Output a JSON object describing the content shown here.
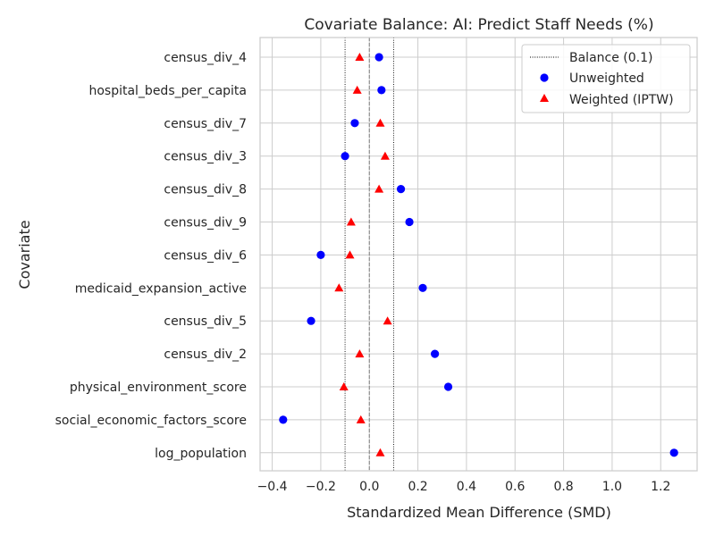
{
  "chart_data": {
    "type": "scatter",
    "title": "Covariate Balance: AI: Predict Staff Needs (%)",
    "xlabel": "Standardized Mean Difference (SMD)",
    "ylabel": "Covariate",
    "xlim": [
      -0.45,
      1.35
    ],
    "xticks": [
      -0.4,
      -0.2,
      0.0,
      0.2,
      0.4,
      0.6,
      0.8,
      1.0,
      1.2
    ],
    "xtick_labels": [
      "−0.4",
      "−0.2",
      "0.0",
      "0.2",
      "0.4",
      "0.6",
      "0.8",
      "1.0",
      "1.2"
    ],
    "grid": true,
    "legend_position": "top-right",
    "categories": [
      "census_div_4",
      "hospital_beds_per_capita",
      "census_div_7",
      "census_div_3",
      "census_div_8",
      "census_div_9",
      "census_div_6",
      "medicaid_expansion_active",
      "census_div_5",
      "census_div_2",
      "physical_environment_score",
      "social_economic_factors_score",
      "log_population"
    ],
    "series": [
      {
        "name": "Unweighted",
        "marker": "circle",
        "color": "#0000ff",
        "values": [
          0.04,
          0.05,
          -0.06,
          -0.1,
          0.13,
          0.165,
          -0.2,
          0.22,
          -0.24,
          0.27,
          0.325,
          -0.355,
          1.255
        ]
      },
      {
        "name": "Weighted (IPTW)",
        "marker": "triangle",
        "color": "#ff0000",
        "values": [
          -0.04,
          -0.05,
          0.045,
          0.065,
          0.04,
          -0.075,
          -0.08,
          -0.125,
          0.075,
          -0.04,
          -0.105,
          -0.035,
          0.045
        ]
      }
    ],
    "reference_lines": {
      "name": "Balance (0.1)",
      "values": [
        -0.1,
        0.1
      ],
      "style": "dotted",
      "color": "#000000"
    },
    "zero_line": {
      "value": 0.0,
      "style": "dashed",
      "color": "#808080"
    }
  }
}
